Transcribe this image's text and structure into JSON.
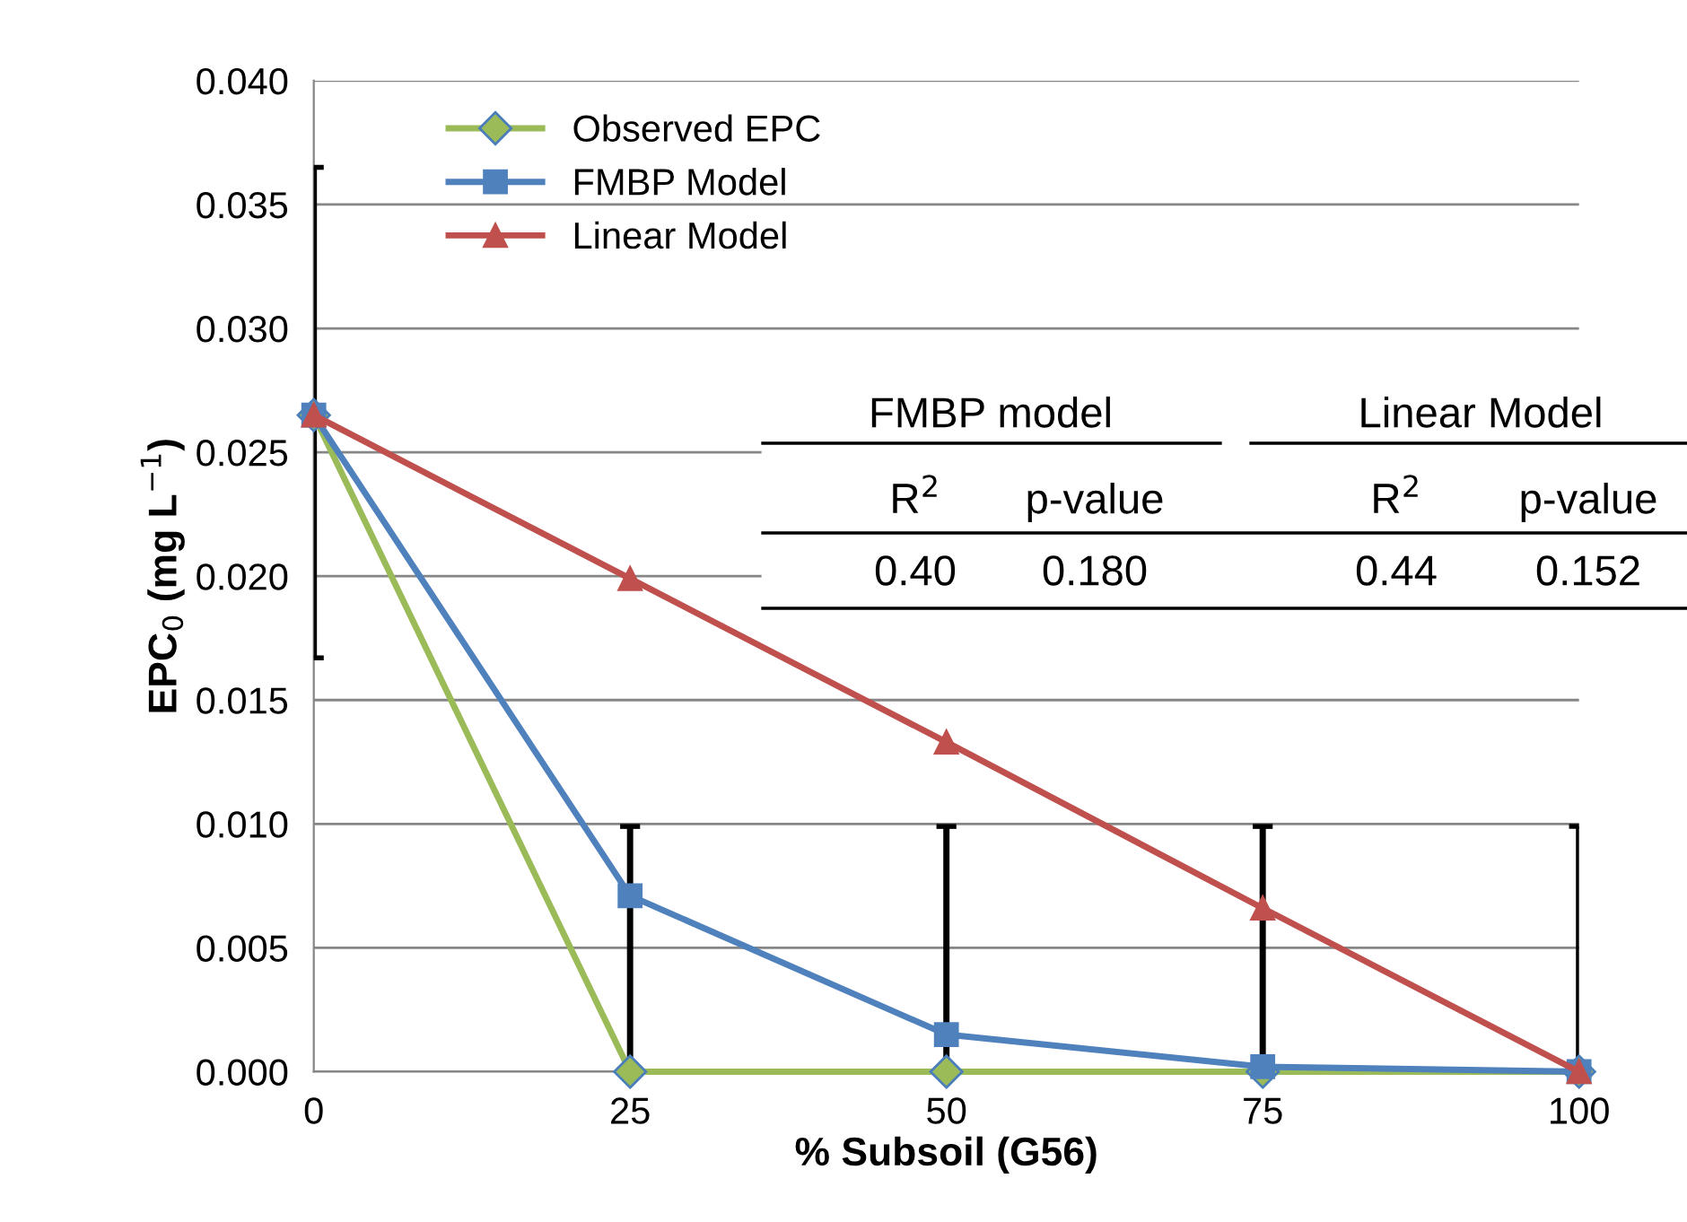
{
  "chart_data": {
    "type": "line",
    "xlabel": "% Subsoil (G56)",
    "ylabel": "EPC$_{0}$ (mg L$^{−1}$)",
    "x": [
      0,
      25,
      50,
      75,
      100
    ],
    "series": [
      {
        "name": "Observed EPC",
        "color": "#9bbb59",
        "marker": "diamond",
        "values": [
          0.0265,
          0.0,
          0.0,
          0.0,
          0.0
        ],
        "errors": [
          [
            0.0167,
            0.0365
          ],
          [
            0.0,
            0.0099
          ],
          [
            0.0,
            0.0099
          ],
          [
            0.0,
            0.0099
          ],
          [
            0.0,
            0.0099
          ]
        ]
      },
      {
        "name": "FMBP Model",
        "color": "#4f81bd",
        "marker": "square",
        "values": [
          0.0265,
          0.0071,
          0.0015,
          0.0002,
          0.0
        ]
      },
      {
        "name": "Linear Model",
        "color": "#c0504d",
        "marker": "triangle",
        "values": [
          0.0265,
          0.0199,
          0.0133,
          0.0066,
          0.0
        ]
      }
    ],
    "xlim": [
      0,
      100
    ],
    "xticks": [
      0,
      25,
      50,
      75,
      100
    ],
    "ylim": [
      0,
      0.04
    ],
    "yticks": [
      {
        "value": 0,
        "label": "0.000"
      },
      {
        "value": 0.005,
        "label": "0.005"
      },
      {
        "value": 0.01,
        "label": "0.010"
      },
      {
        "value": 0.015,
        "label": "0.015"
      },
      {
        "value": 0.02,
        "label": "0.020"
      },
      {
        "value": 0.025,
        "label": "0.025"
      },
      {
        "value": 0.03,
        "label": "0.030"
      },
      {
        "value": 0.035,
        "label": "0.035"
      },
      {
        "value": 0.04,
        "label": "0.040"
      }
    ],
    "grid": "y",
    "legend": "top left",
    "annotations": [
      "FMBP model",
      "Linear Model",
      "R$^{2}$",
      "p-value",
      "R$^{2}$",
      "p-value",
      "0.40",
      "0.180",
      "0.44",
      "0.152"
    ]
  }
}
